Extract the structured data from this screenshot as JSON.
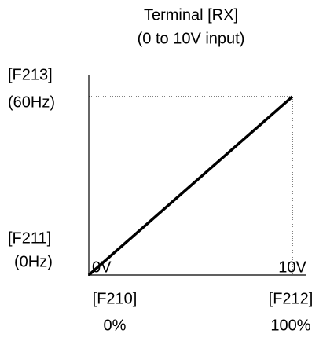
{
  "title": [
    "Terminal [RX]",
    "(0 to 10V input)"
  ],
  "y_labels": {
    "top": [
      "[F213]",
      "(60Hz)"
    ],
    "bottom": [
      "[F211]",
      "(0Hz)"
    ]
  },
  "x_labels": {
    "start": {
      "voltage": "0V",
      "parameter": "[F210]",
      "percent": "0%"
    },
    "end": {
      "voltage": "10V",
      "parameter": "[F212]",
      "percent": "100%"
    }
  }
}
